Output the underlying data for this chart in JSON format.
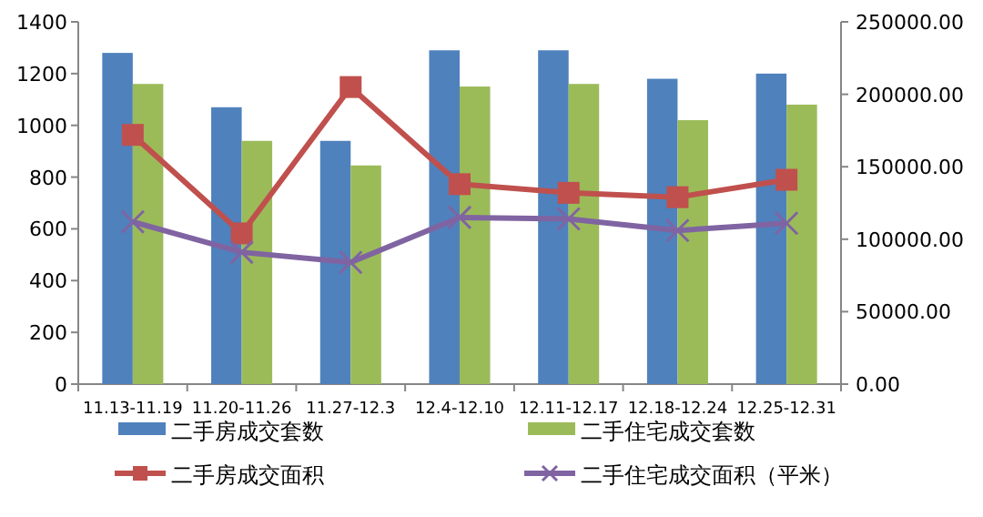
{
  "chart_data": {
    "type": "bar",
    "categories": [
      "11.13-11.19",
      "11.20-11.26",
      "11.27-12.3",
      "12.4-12.10",
      "12.11-12.17",
      "12.18-12.24",
      "12.25-12.31"
    ],
    "series": [
      {
        "name": "二手房成交套数",
        "color": "#4f81bd",
        "values": [
          1280,
          1070,
          940,
          1290,
          1290,
          1180,
          1200
        ]
      },
      {
        "name": "二手住宅成交套数",
        "color": "#9bbb59",
        "values": [
          1160,
          940,
          845,
          1150,
          1160,
          1020,
          1080
        ]
      },
      {
        "name": "二手房成交面积",
        "type": "line",
        "axis": "y2",
        "marker": "square",
        "color": "#c0504d",
        "values": [
          172000,
          104000,
          205000,
          138000,
          132000,
          129000,
          141000
        ]
      },
      {
        "name": "二手住宅成交面积（平米）",
        "type": "line",
        "axis": "y2",
        "marker": "cross",
        "color": "#8064a2",
        "values": [
          112000,
          91000,
          84000,
          115000,
          114000,
          106000,
          111000
        ]
      }
    ],
    "ylim": [
      0,
      1400
    ],
    "yticks": [
      0,
      200,
      400,
      600,
      800,
      1000,
      1200,
      1400
    ],
    "y2lim": [
      0,
      250000
    ],
    "y2ticks": [
      {
        "value": 0,
        "label": "0.00"
      },
      {
        "value": 50000,
        "label": "50000.00"
      },
      {
        "value": 100000,
        "label": "100000.00"
      },
      {
        "value": 150000,
        "label": "150000.00"
      },
      {
        "value": 200000,
        "label": "200000.00"
      },
      {
        "value": 250000,
        "label": "250000.00"
      }
    ],
    "legend": "bottom"
  }
}
